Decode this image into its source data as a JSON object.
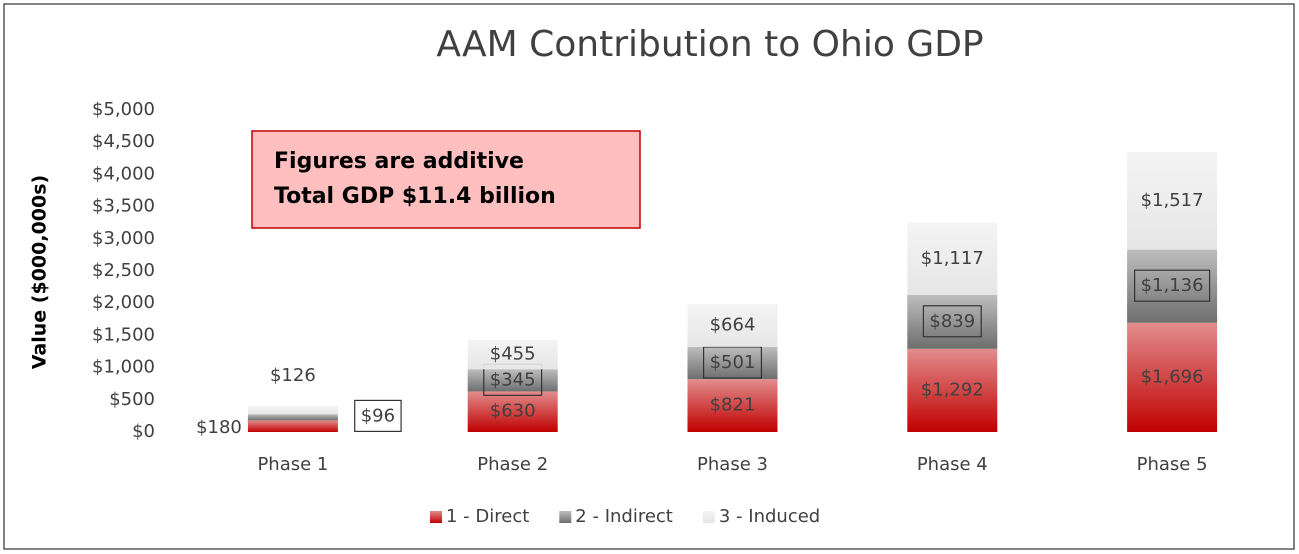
{
  "chart_data": {
    "type": "stacked_bar",
    "title": "AAM Contribution to Ohio GDP",
    "y_label": "Value ($000,000s)",
    "annotation": [
      "Figures are additive",
      "Total GDP $11.4 billion"
    ],
    "categories": [
      "Phase 1",
      "Phase 2",
      "Phase 3",
      "Phase 4",
      "Phase 5"
    ],
    "series": [
      {
        "name": "1 - Direct",
        "color": "#c00000",
        "values": [
          180,
          630,
          821,
          1292,
          1696
        ],
        "value_labels": [
          "$180",
          "$630",
          "$821",
          "$1,292",
          "$1,696"
        ]
      },
      {
        "name": "2 - Indirect",
        "color": "#6e6e6e",
        "values": [
          96,
          345,
          501,
          839,
          1136
        ],
        "value_labels": [
          "$96",
          "$345",
          "$501",
          "$839",
          "$1,136"
        ]
      },
      {
        "name": "3 - Induced",
        "color": "#e6e6e6",
        "values": [
          126,
          455,
          664,
          1117,
          1517
        ],
        "value_labels": [
          "$126",
          "$455",
          "$664",
          "$1,117",
          "$1,517"
        ]
      }
    ],
    "ylim": [
      0,
      5000
    ],
    "yticks": [
      {
        "value": 0,
        "label": "$0"
      },
      {
        "value": 500,
        "label": "$500"
      },
      {
        "value": 1000,
        "label": "$1,000"
      },
      {
        "value": 1500,
        "label": "$1,500"
      },
      {
        "value": 2000,
        "label": "$2,000"
      },
      {
        "value": 2500,
        "label": "$2,500"
      },
      {
        "value": 3000,
        "label": "$3,000"
      },
      {
        "value": 3500,
        "label": "$3,500"
      },
      {
        "value": 4000,
        "label": "$4,000"
      },
      {
        "value": 4500,
        "label": "$4,500"
      },
      {
        "value": 5000,
        "label": "$5,000"
      }
    ],
    "legend": "bottom"
  }
}
